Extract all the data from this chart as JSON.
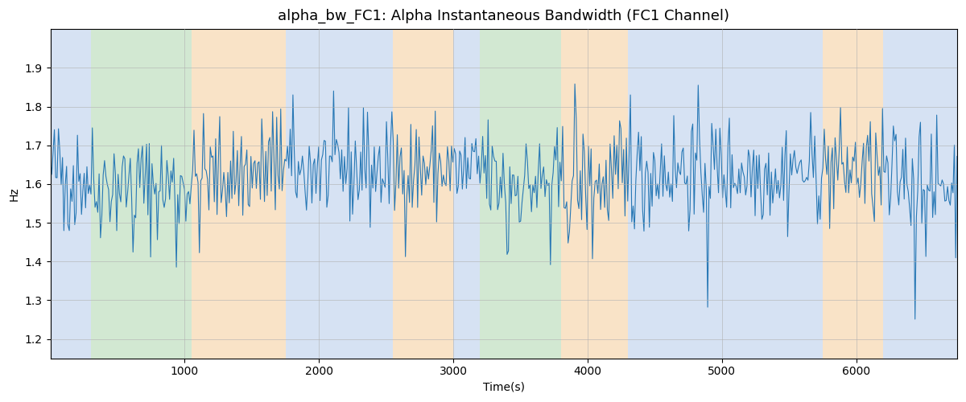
{
  "title": "alpha_bw_FC1: Alpha Instantaneous Bandwidth (FC1 Channel)",
  "xlabel": "Time(s)",
  "ylabel": "Hz",
  "ylim": [
    1.15,
    2.0
  ],
  "xlim": [
    0,
    6750
  ],
  "line_color": "#2878b5",
  "line_width": 0.8,
  "background_color": "#ffffff",
  "grid_color": "#b0b0b0",
  "bands": [
    {
      "xmin": 0,
      "xmax": 300,
      "color": "#aec6e8",
      "alpha": 0.5
    },
    {
      "xmin": 300,
      "xmax": 1050,
      "color": "#90c790",
      "alpha": 0.4
    },
    {
      "xmin": 1050,
      "xmax": 1750,
      "color": "#f5c890",
      "alpha": 0.5
    },
    {
      "xmin": 1750,
      "xmax": 2550,
      "color": "#aec6e8",
      "alpha": 0.5
    },
    {
      "xmin": 2550,
      "xmax": 3000,
      "color": "#f5c890",
      "alpha": 0.5
    },
    {
      "xmin": 3000,
      "xmax": 3200,
      "color": "#aec6e8",
      "alpha": 0.5
    },
    {
      "xmin": 3200,
      "xmax": 3800,
      "color": "#90c790",
      "alpha": 0.4
    },
    {
      "xmin": 3800,
      "xmax": 4300,
      "color": "#f5c890",
      "alpha": 0.5
    },
    {
      "xmin": 4300,
      "xmax": 5750,
      "color": "#aec6e8",
      "alpha": 0.5
    },
    {
      "xmin": 5750,
      "xmax": 6200,
      "color": "#f5c890",
      "alpha": 0.5
    },
    {
      "xmin": 6200,
      "xmax": 6750,
      "color": "#aec6e8",
      "alpha": 0.5
    }
  ],
  "seed": 42,
  "n_points": 670,
  "base_mean": 1.625,
  "title_fontsize": 13,
  "figsize": [
    12.0,
    5.0
  ],
  "dpi": 100
}
